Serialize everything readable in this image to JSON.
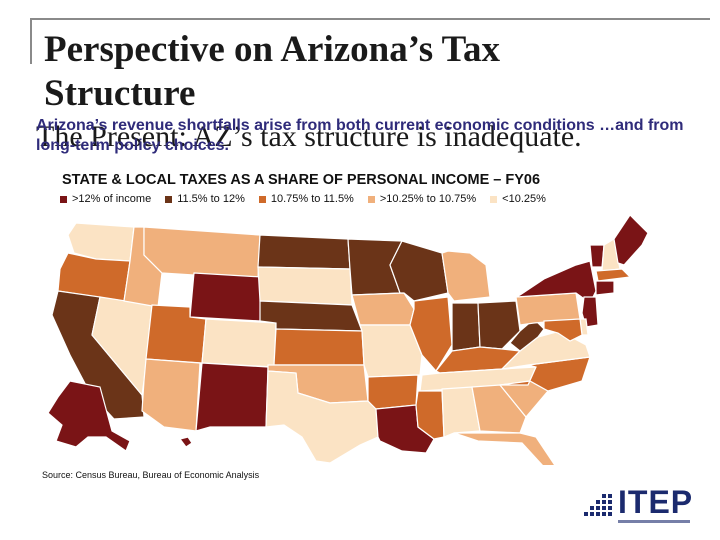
{
  "slide": {
    "title": "Perspective on Arizona’s Tax Structure",
    "present_line": "The Present: AZ’s tax structure is inadequate.",
    "subtitle": "Arizona’s revenue shortfalls arise from both current economic conditions …and from long-term policy choices.",
    "map_title": "STATE & LOCAL TAXES AS A SHARE OF PERSONAL INCOME – FY06",
    "source": "Source: Census Bureau, Bureau of Economic Analysis",
    "logo": "ITEP"
  },
  "legend": [
    {
      "label": ">12% of income",
      "color": "#7a1416"
    },
    {
      "label": "11.5% to 12%",
      "color": "#6b3418"
    },
    {
      "label": "10.75% to 11.5%",
      "color": "#cf6a2a"
    },
    {
      "label": ">10.25% to 10.75%",
      "color": "#f0b07c"
    },
    {
      "label": "<10.25%",
      "color": "#fbe3c4"
    }
  ],
  "map": {
    "icon": "us-states-map",
    "state_categories": {
      "WA": "<10.25%",
      "OR": "10.75% to 11.5%",
      "CA": "11.5% to 12%",
      "NV": "<10.25%",
      "ID": ">10.25% to 10.75%",
      "MT": ">10.25% to 10.75%",
      "WY": ">12% of income",
      "UT": "10.75% to 11.5%",
      "CO": "<10.25%",
      "AZ": ">10.25% to 10.75%",
      "NM": ">12% of income",
      "ND": "11.5% to 12%",
      "SD": "<10.25%",
      "NE": "11.5% to 12%",
      "KS": "10.75% to 11.5%",
      "OK": ">10.25% to 10.75%",
      "TX": "<10.25%",
      "MN": "11.5% to 12%",
      "IA": ">10.25% to 10.75%",
      "MO": "<10.25%",
      "AR": "10.75% to 11.5%",
      "LA": ">12% of income",
      "WI": "11.5% to 12%",
      "IL": "10.75% to 11.5%",
      "MI": ">10.25% to 10.75%",
      "IN": "11.5% to 12%",
      "OH": "11.5% to 12%",
      "KY": "10.75% to 11.5%",
      "TN": "<10.25%",
      "MS": "10.75% to 11.5%",
      "AL": "<10.25%",
      "GA": ">10.25% to 10.75%",
      "FL": ">10.25% to 10.75%",
      "SC": ">10.25% to 10.75%",
      "NC": "10.75% to 11.5%",
      "VA": "<10.25%",
      "WV": "11.5% to 12%",
      "PA": ">10.25% to 10.75%",
      "NY": ">12% of income",
      "VT": ">12% of income",
      "NH": "<10.25%",
      "ME": ">12% of income",
      "MA": "10.75% to 11.5%",
      "CT": ">12% of income",
      "NJ": ">12% of income",
      "DE": "<10.25%",
      "MD": "10.75% to 11.5%",
      "AK": ">12% of income",
      "HI": ">12% of income"
    }
  }
}
